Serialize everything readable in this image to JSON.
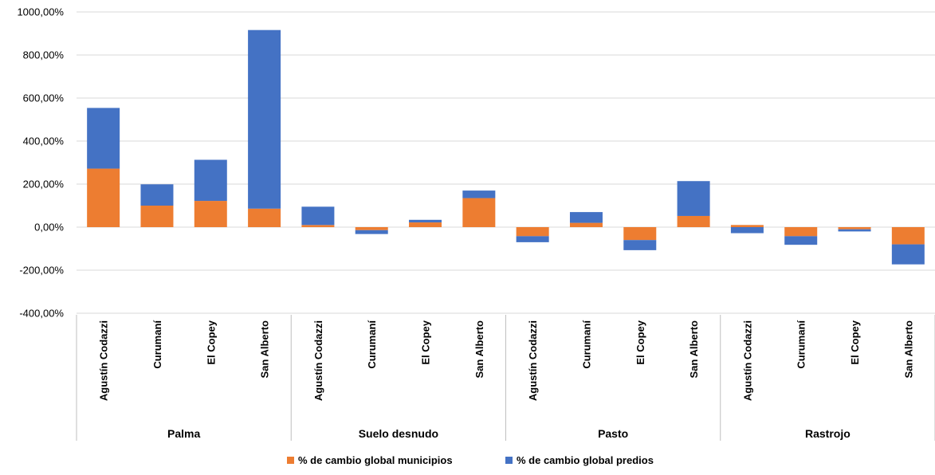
{
  "chart_data": {
    "type": "bar",
    "stacked": true,
    "title": "",
    "xlabel": "",
    "ylabel": "",
    "ylim": [
      -400,
      1000
    ],
    "yticks": [
      "1000,00%",
      "800,00%",
      "600,00%",
      "400,00%",
      "200,00%",
      "0,00%",
      "-200,00%",
      "-400,00%"
    ],
    "grid": true,
    "legend_position": "bottom",
    "groups": [
      {
        "name": "Palma",
        "categories": [
          "Agustín Codazzi",
          "Curumaní",
          "El Copey",
          "San Alberto"
        ]
      },
      {
        "name": "Suelo desnudo",
        "categories": [
          "Agustín Codazzi",
          "Curumaní",
          "El Copey",
          "San Alberto"
        ]
      },
      {
        "name": "Pasto",
        "categories": [
          "Agustín Codazzi",
          "Curumaní",
          "El Copey",
          "San Alberto"
        ]
      },
      {
        "name": "Rastrojo",
        "categories": [
          "Agustín Codazzi",
          "Curumaní",
          "El Copey",
          "San Alberto"
        ]
      }
    ],
    "series": [
      {
        "name": "% de cambio global municipios",
        "color": "#ED7D31",
        "values": [
          272,
          100,
          122,
          86,
          10,
          -14,
          22,
          135,
          -42,
          20,
          -60,
          52,
          10,
          -42,
          -10,
          -80
        ]
      },
      {
        "name": "% de cambio global predios",
        "color": "#4472C4",
        "values": [
          282,
          99,
          191,
          830,
          85,
          -18,
          12,
          35,
          -28,
          50,
          -47,
          162,
          -28,
          -40,
          -10,
          -93
        ]
      }
    ]
  }
}
